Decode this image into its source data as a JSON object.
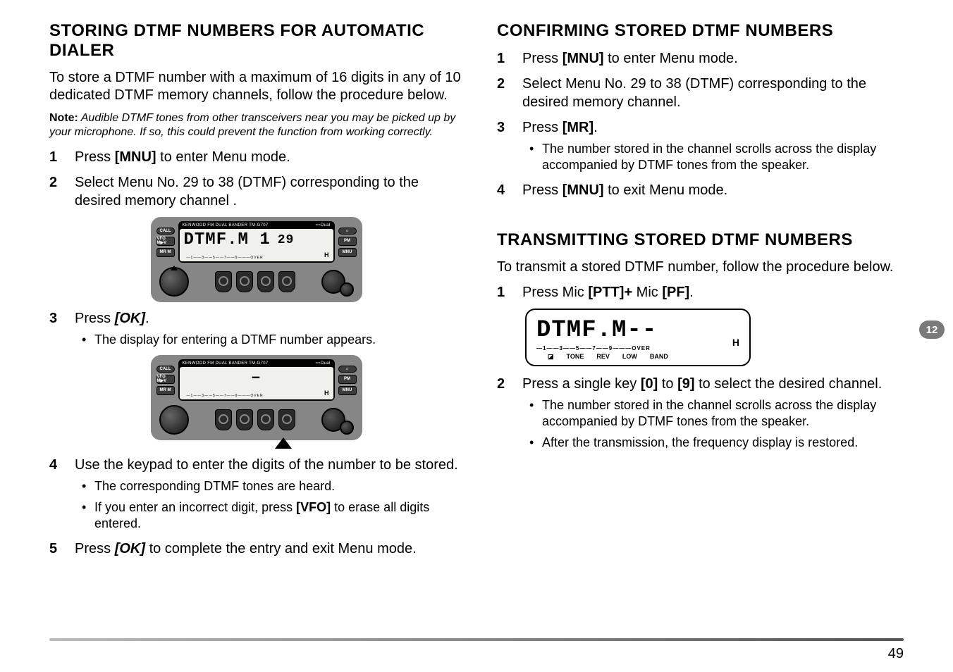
{
  "page_number": "49",
  "side_tab": "12",
  "left": {
    "heading": "STORING DTMF NUMBERS FOR AUTOMATIC DIALER",
    "intro": "To store a DTMF number with a maximum of 16 digits in any of 10 dedicated DTMF memory channels, follow the procedure below.",
    "note_label": "Note:",
    "note_text": "  Audible DTMF tones from other transceivers near you may be picked up by your microphone.  If so, this could prevent the function from working correctly.",
    "steps": {
      "s1_a": "Press ",
      "s1_b": "[MNU]",
      "s1_c": " to enter Menu mode.",
      "s2": "Select Menu No. 29 to 38 (DTMF) corresponding to the desired memory channel .",
      "s3_a": "Press ",
      "s3_b": "[OK]",
      "s3_c": ".",
      "s3_sub1": "The display for entering a DTMF number appears.",
      "s4": "Use the keypad to enter the digits of the number to be stored.",
      "s4_sub1": "The corresponding DTMF tones are heard.",
      "s4_sub2_a": "If you enter an incorrect digit, press ",
      "s4_sub2_b": "[VFO]",
      "s4_sub2_c": " to erase all digits entered.",
      "s5_a": "Press ",
      "s5_b": "[OK]",
      "s5_c": " to complete the entry and exit Menu mode."
    },
    "radio1": {
      "brand": "KENWOOD FM DUAL BANDER  TM-G707",
      "brand_r": "≈≈Dual",
      "lcd_main": "DTMF.M 1",
      "lcd_num": "29",
      "scale": "—1——3——5——7——9———OVER",
      "h": "H",
      "side_left": [
        "CALL",
        "VFO M▶V",
        "MR M"
      ],
      "side_right": [
        "☼",
        "PM",
        "MNU"
      ]
    },
    "radio2": {
      "brand": "KENWOOD FM DUAL BANDER  TM-G707",
      "brand_r": "≈≈Dual",
      "lcd_main": "–",
      "scale": "—1——3——5——7——9———OVER",
      "h": "H",
      "side_left": [
        "CALL",
        "VFO M▶V",
        "MR M"
      ],
      "side_right": [
        "☼",
        "PM",
        "MNU"
      ]
    }
  },
  "right": {
    "heading1": "CONFIRMING STORED DTMF NUMBERS",
    "c_steps": {
      "s1_a": "Press ",
      "s1_b": "[MNU]",
      "s1_c": " to enter Menu mode.",
      "s2": "Select Menu No. 29 to 38 (DTMF) corresponding to the desired memory channel.",
      "s3_a": "Press ",
      "s3_b": "[MR]",
      "s3_c": ".",
      "s3_sub1": "The number stored in the channel scrolls across the display accompanied by DTMF tones from the speaker.",
      "s4_a": "Press ",
      "s4_b": "[MNU]",
      "s4_c": " to exit Menu mode."
    },
    "heading2": "TRANSMITTING STORED DTMF NUMBERS",
    "t_intro": "To transmit a stored DTMF number, follow the procedure below.",
    "t_steps": {
      "s1_a": "Press Mic ",
      "s1_b": "[PTT]+",
      "s1_c": " Mic ",
      "s1_d": "[PF]",
      "s1_e": ".",
      "s2_a": "Press a single key ",
      "s2_b": "[0]",
      "s2_c": " to ",
      "s2_d": "[9]",
      "s2_e": " to select the desired channel.",
      "s2_sub1": "The number stored in the channel scrolls across the display accompanied by DTMF tones from the speaker.",
      "s2_sub2": "After the transmission, the frequency display is restored."
    },
    "lcd": {
      "main": "DTMF.M--",
      "scale": "—1——3——5——7——9———OVER",
      "row2": [
        "◪",
        "TONE",
        "REV",
        "LOW",
        "BAND"
      ],
      "h": "H"
    }
  },
  "colors": {
    "text": "#000000",
    "bg": "#ffffff",
    "radio_body": "#868686",
    "side_tab_bg": "#7a7a7a"
  },
  "typography": {
    "body_fontsize_pt": 15,
    "heading_fontsize_pt": 18,
    "note_fontsize_pt": 12,
    "sub_fontsize_pt": 13.5
  }
}
